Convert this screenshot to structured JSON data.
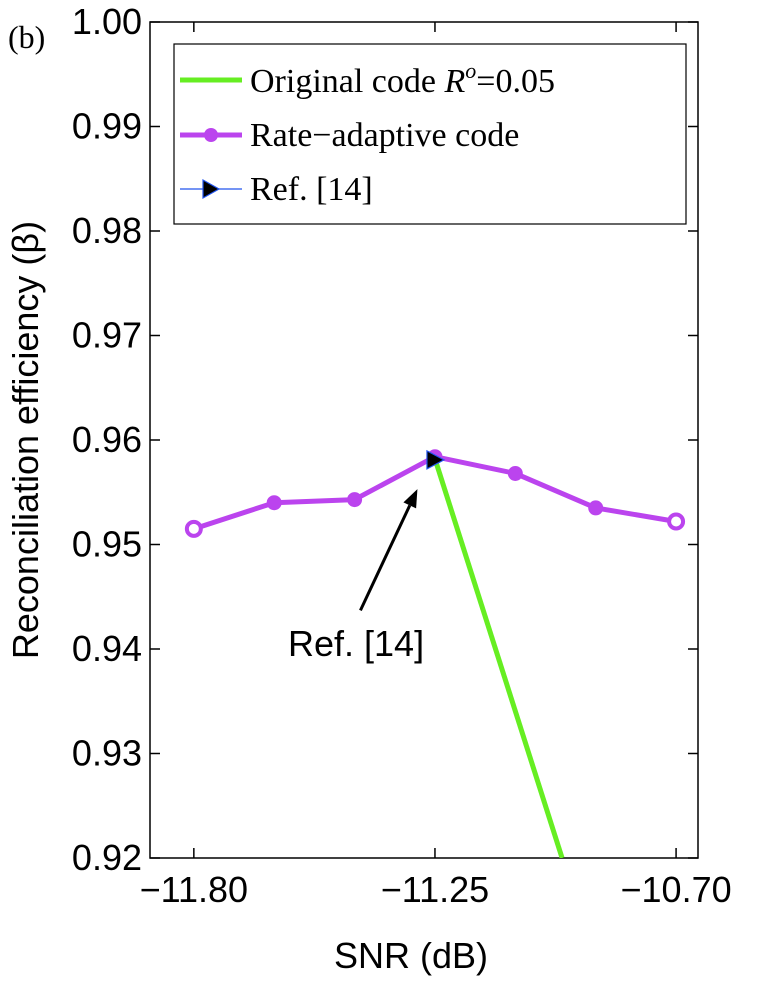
{
  "chart_data": {
    "type": "line",
    "panel_label": "(b)",
    "xlabel": "SNR (dB)",
    "ylabel": "Reconciliation efficiency (β)",
    "xlim": [
      -11.9,
      -10.65
    ],
    "ylim": [
      0.92,
      1.0
    ],
    "xticks": [
      -11.8,
      -11.25,
      -10.7
    ],
    "xtick_labels": [
      "−11.80",
      "−11.25",
      "−10.70"
    ],
    "yticks": [
      0.92,
      0.93,
      0.94,
      0.95,
      0.96,
      0.97,
      0.98,
      0.99,
      1.0
    ],
    "ytick_labels": [
      "0.92",
      "0.93",
      "0.94",
      "0.95",
      "0.96",
      "0.97",
      "0.98",
      "0.99",
      "1.00"
    ],
    "series": [
      {
        "name": "Original code Ro=0.05",
        "legend_prefix": "Original code ",
        "legend_symbol": "R",
        "legend_superscript": "o",
        "legend_suffix": "=0.05",
        "color": "#66ee22",
        "x": [
          -11.25,
          -10.96
        ],
        "values": [
          0.9582,
          0.92
        ]
      },
      {
        "name": "Rate−adaptive code",
        "color": "#bb44ee",
        "x": [
          -11.8,
          -11.6167,
          -11.4333,
          -11.25,
          -11.0667,
          -10.8833,
          -10.7
        ],
        "values": [
          0.9515,
          0.954,
          0.9543,
          0.9584,
          0.9568,
          0.9535,
          0.9522
        ],
        "hollow_points": [
          0,
          6
        ]
      },
      {
        "name": "Ref. [14]",
        "color": "#2255ee",
        "marker_fill": "#000000",
        "x": [
          -11.25
        ],
        "values": [
          0.9581
        ]
      }
    ],
    "annotations": [
      {
        "text": "Ref. [14]",
        "arrow_to": {
          "x": -11.29,
          "y": 0.9553
        },
        "arrow_from": {
          "x": -11.42,
          "y": 0.9437
        },
        "text_at": {
          "x": -11.43,
          "y": 0.9405
        }
      }
    ],
    "legend_location": "top-right"
  }
}
